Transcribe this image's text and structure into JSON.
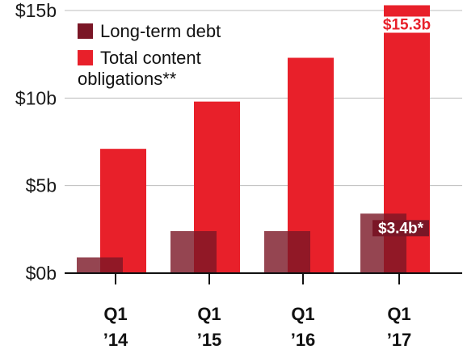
{
  "chart_data": {
    "type": "bar",
    "categories": [
      {
        "line1": "Q1",
        "line2": "’14"
      },
      {
        "line1": "Q1",
        "line2": "’15"
      },
      {
        "line1": "Q1",
        "line2": "’16"
      },
      {
        "line1": "Q1",
        "line2": "’17"
      }
    ],
    "series": [
      {
        "name": "Long-term debt",
        "color": "#7a1626",
        "opacity": 0.8,
        "values": [
          0.9,
          2.4,
          2.4,
          3.4
        ]
      },
      {
        "name": "Total content obligations**",
        "name_lines": [
          "Total content",
          "obligations**"
        ],
        "color": "#e8202a",
        "opacity": 1.0,
        "values": [
          7.1,
          9.8,
          12.3,
          15.3
        ]
      }
    ],
    "ylim": [
      0,
      15
    ],
    "y_ticks": [
      {
        "value": 0,
        "label": "$0b"
      },
      {
        "value": 5,
        "label": "$5b"
      },
      {
        "value": 10,
        "label": "$10b"
      },
      {
        "value": 15,
        "label": "$15b"
      }
    ],
    "data_labels": [
      {
        "series": 1,
        "category": 3,
        "text": "$15.3b",
        "color": "#e8202a",
        "background": "#ffffff"
      },
      {
        "series": 0,
        "category": 3,
        "text": "$3.4b*",
        "color": "#ffffff",
        "background": "#7a1626"
      }
    ],
    "legend_position": "top-left",
    "grid": true,
    "title": "",
    "xlabel": "",
    "ylabel": ""
  }
}
